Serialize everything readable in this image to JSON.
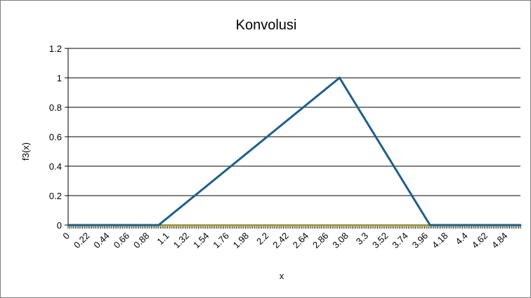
{
  "chart_data": {
    "type": "line",
    "title": "Konvolusi",
    "xlabel": "x",
    "ylabel": "f3(x)",
    "ylim": [
      0,
      1.2
    ],
    "yticks": [
      "0",
      "0.2",
      "0.4",
      "0.6",
      "0.8",
      "1",
      "1.2"
    ],
    "x_tick_labels": [
      "0",
      "0.22",
      "0.44",
      "0.66",
      "0.88",
      "1.1",
      "1.32",
      "1.54",
      "1.76",
      "1.98",
      "2.2",
      "2.42",
      "2.64",
      "2.86",
      "3.08",
      "3.3",
      "3.52",
      "3.74",
      "3.96",
      "4.18",
      "4.4",
      "4.62",
      "4.84"
    ],
    "x_step": 0.02,
    "x_range": [
      0,
      5
    ],
    "grid": true,
    "legend": "none",
    "series": [
      {
        "color": "#1f5f8b",
        "points": [
          [
            0,
            0
          ],
          [
            1.0,
            0
          ],
          [
            3.0,
            1.0
          ],
          [
            4.0,
            0
          ],
          [
            5.0,
            0
          ]
        ]
      }
    ],
    "baseline_color": "#d9c800"
  }
}
